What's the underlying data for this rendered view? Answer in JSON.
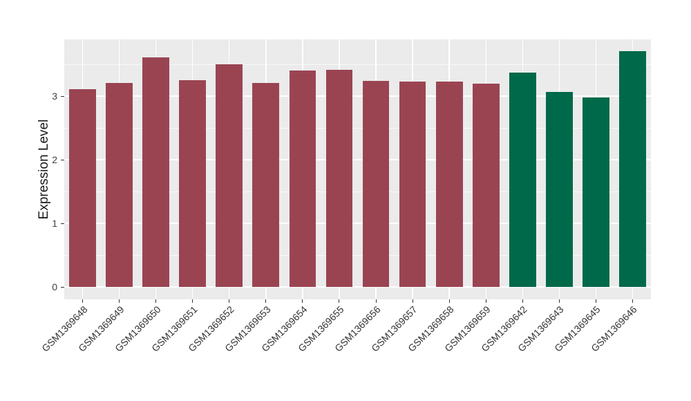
{
  "figure": {
    "background": "#FFFFFF"
  },
  "chart_data": {
    "type": "bar",
    "title": "",
    "ylabel": "Expression Level",
    "xlabel": "",
    "categories": [
      "GSM1369648",
      "GSM1369649",
      "GSM1369650",
      "GSM1369651",
      "GSM1369652",
      "GSM1369653",
      "GSM1369654",
      "GSM1369655",
      "GSM1369656",
      "GSM1369657",
      "GSM1369658",
      "GSM1369659",
      "GSM1369642",
      "GSM1369643",
      "GSM1369645",
      "GSM1369646"
    ],
    "values": [
      3.11,
      3.21,
      3.61,
      3.25,
      3.5,
      3.21,
      3.4,
      3.41,
      3.24,
      3.23,
      3.23,
      3.2,
      3.37,
      3.07,
      2.98,
      3.71
    ],
    "bar_colors": [
      "#9A4452",
      "#9A4452",
      "#9A4452",
      "#9A4452",
      "#9A4452",
      "#9A4452",
      "#9A4452",
      "#9A4452",
      "#9A4452",
      "#9A4452",
      "#9A4452",
      "#9A4452",
      "#006949",
      "#006949",
      "#006949",
      "#006949"
    ],
    "group_colors": {
      "group_1": "#9A4452",
      "group_2": "#006949"
    },
    "yticks": [
      "0",
      "1",
      "2",
      "3"
    ],
    "ylim": [
      0,
      3.89
    ],
    "x_label_angle": 45,
    "legend": "none",
    "style": {
      "panel_background": "#EBEBEB",
      "grid_major": "#FFFFFF",
      "grid_minor": "#FFFFFF",
      "grid": "major and minor horizontal, major vertical at category centers",
      "axis_text_color": "#404040",
      "tick_color": "#333333"
    }
  }
}
